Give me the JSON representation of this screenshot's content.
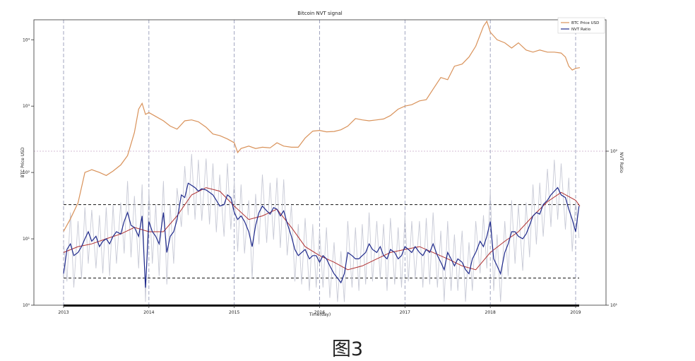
{
  "caption": "图3",
  "chart_data": {
    "type": "line",
    "title": "Bitcoin NVT signal",
    "xlabel": "Time(day)",
    "ylabel_left": "BTC Price USD",
    "ylabel_right": "NVT Ratio",
    "yscale_left": "log",
    "yscale_right": "log",
    "ylim_left": [
      1,
      20000
    ],
    "ylim_right": [
      10,
      100
    ],
    "x_ticks": [
      "2013",
      "2014",
      "2015",
      "2016",
      "2017",
      "2018",
      "2019"
    ],
    "y_ticks_left": [
      {
        "value": 1,
        "label": "10⁰"
      },
      {
        "value": 10,
        "label": "10¹"
      },
      {
        "value": 100,
        "label": "10²"
      },
      {
        "value": 1000,
        "label": "10³"
      },
      {
        "value": 10000,
        "label": "10⁴"
      }
    ],
    "y_ticks_right": [
      {
        "value": 10,
        "label": "10¹"
      },
      {
        "value": 100,
        "label": "10²"
      }
    ],
    "grid": "vertical dashed at years",
    "legend": {
      "position": "top-right",
      "entries": [
        "BTC Price USD",
        "NVT Ratio"
      ]
    },
    "colors": {
      "price": "#d9925a",
      "nvt": "#1f2a8c",
      "nvt_ma": "#b03030",
      "nvt_raw": "#c8cad6",
      "reference": "#111111",
      "grid": "#8a8fb0"
    },
    "reference_lines_nvt": [
      15,
      45
    ],
    "horizontal_guide_nvt": 100,
    "series": [
      {
        "name": "BTC Price USD",
        "axis": "left",
        "x": [
          2013.0,
          2013.08,
          2013.17,
          2013.25,
          2013.33,
          2013.42,
          2013.5,
          2013.58,
          2013.67,
          2013.75,
          2013.83,
          2013.88,
          2013.92,
          2013.96,
          2014.0,
          2014.08,
          2014.17,
          2014.25,
          2014.33,
          2014.42,
          2014.5,
          2014.58,
          2014.67,
          2014.75,
          2014.83,
          2014.92,
          2015.0,
          2015.04,
          2015.08,
          2015.17,
          2015.25,
          2015.33,
          2015.42,
          2015.5,
          2015.58,
          2015.67,
          2015.75,
          2015.83,
          2015.92,
          2016.0,
          2016.08,
          2016.17,
          2016.25,
          2016.33,
          2016.42,
          2016.5,
          2016.58,
          2016.67,
          2016.75,
          2016.83,
          2016.92,
          2017.0,
          2017.08,
          2017.17,
          2017.25,
          2017.33,
          2017.42,
          2017.5,
          2017.58,
          2017.67,
          2017.75,
          2017.83,
          2017.92,
          2017.96,
          2018.0,
          2018.08,
          2018.17,
          2018.25,
          2018.33,
          2018.42,
          2018.5,
          2018.58,
          2018.67,
          2018.75,
          2018.83,
          2018.88,
          2018.92,
          2018.96,
          2019.0,
          2019.05
        ],
        "values": [
          13,
          20,
          35,
          100,
          110,
          100,
          90,
          105,
          130,
          180,
          400,
          900,
          1100,
          750,
          800,
          700,
          600,
          500,
          450,
          600,
          620,
          580,
          480,
          380,
          360,
          320,
          280,
          200,
          230,
          250,
          230,
          240,
          235,
          280,
          250,
          240,
          240,
          330,
          420,
          430,
          410,
          415,
          440,
          500,
          650,
          620,
          600,
          620,
          640,
          720,
          900,
          1000,
          1050,
          1200,
          1250,
          1800,
          2700,
          2500,
          4000,
          4300,
          5500,
          8000,
          16000,
          19000,
          13000,
          10000,
          9000,
          7500,
          9000,
          7000,
          6500,
          7000,
          6500,
          6500,
          6300,
          5500,
          4000,
          3500,
          3700,
          3800
        ]
      },
      {
        "name": "NVT Ratio",
        "axis": "right",
        "x": [
          2013.0,
          2013.04,
          2013.08,
          2013.12,
          2013.17,
          2013.21,
          2013.25,
          2013.29,
          2013.33,
          2013.38,
          2013.42,
          2013.46,
          2013.5,
          2013.54,
          2013.58,
          2013.62,
          2013.67,
          2013.71,
          2013.75,
          2013.79,
          2013.83,
          2013.88,
          2013.92,
          2013.96,
          2014.0,
          2014.04,
          2014.08,
          2014.12,
          2014.17,
          2014.21,
          2014.25,
          2014.29,
          2014.33,
          2014.38,
          2014.42,
          2014.46,
          2014.5,
          2014.54,
          2014.58,
          2014.62,
          2014.67,
          2014.71,
          2014.75,
          2014.79,
          2014.83,
          2014.88,
          2014.92,
          2014.96,
          2015.0,
          2015.04,
          2015.08,
          2015.12,
          2015.17,
          2015.21,
          2015.25,
          2015.29,
          2015.33,
          2015.38,
          2015.42,
          2015.46,
          2015.5,
          2015.54,
          2015.58,
          2015.62,
          2015.67,
          2015.71,
          2015.75,
          2015.79,
          2015.83,
          2015.88,
          2015.92,
          2015.96,
          2016.0,
          2016.04,
          2016.08,
          2016.12,
          2016.17,
          2016.21,
          2016.25,
          2016.29,
          2016.33,
          2016.38,
          2016.42,
          2016.46,
          2016.5,
          2016.54,
          2016.58,
          2016.62,
          2016.67,
          2016.71,
          2016.75,
          2016.79,
          2016.83,
          2016.88,
          2016.92,
          2016.96,
          2017.0,
          2017.04,
          2017.08,
          2017.12,
          2017.17,
          2017.21,
          2017.25,
          2017.29,
          2017.33,
          2017.38,
          2017.42,
          2017.46,
          2017.5,
          2017.54,
          2017.58,
          2017.62,
          2017.67,
          2017.71,
          2017.75,
          2017.79,
          2017.83,
          2017.88,
          2017.92,
          2017.96,
          2018.0,
          2018.04,
          2018.08,
          2018.12,
          2018.17,
          2018.21,
          2018.25,
          2018.29,
          2018.33,
          2018.38,
          2018.42,
          2018.46,
          2018.5,
          2018.54,
          2018.58,
          2018.62,
          2018.67,
          2018.71,
          2018.75,
          2018.79,
          2018.83,
          2018.88,
          2018.92,
          2018.96,
          2019.0,
          2019.04
        ],
        "values": [
          16,
          23,
          25,
          21,
          22,
          24,
          27,
          30,
          26,
          28,
          24,
          26,
          27,
          25,
          28,
          30,
          29,
          35,
          40,
          33,
          32,
          28,
          38,
          13,
          35,
          30,
          28,
          25,
          40,
          22,
          28,
          30,
          36,
          52,
          50,
          62,
          60,
          58,
          55,
          57,
          56,
          54,
          52,
          48,
          44,
          45,
          52,
          50,
          40,
          36,
          38,
          35,
          30,
          24,
          33,
          40,
          44,
          41,
          39,
          43,
          42,
          38,
          41,
          34,
          28,
          23,
          21,
          22,
          23,
          20,
          21,
          21,
          19,
          21,
          20,
          18,
          16,
          15,
          14,
          16,
          22,
          21,
          20,
          20,
          21,
          22,
          25,
          23,
          22,
          24,
          21,
          20,
          23,
          22,
          20,
          21,
          24,
          23,
          22,
          24,
          22,
          21,
          23,
          22,
          25,
          21,
          19,
          17,
          22,
          20,
          18,
          20,
          19,
          17,
          16,
          20,
          22,
          26,
          24,
          28,
          35,
          20,
          18,
          16,
          22,
          25,
          30,
          30,
          28,
          27,
          29,
          33,
          38,
          40,
          39,
          45,
          48,
          52,
          55,
          58,
          52,
          50,
          42,
          36,
          30,
          44
        ]
      },
      {
        "name": "NVT moving average",
        "axis": "right",
        "x": [
          2013.0,
          2013.17,
          2013.33,
          2013.5,
          2013.67,
          2013.83,
          2014.0,
          2014.17,
          2014.33,
          2014.5,
          2014.67,
          2014.83,
          2015.0,
          2015.17,
          2015.33,
          2015.5,
          2015.67,
          2015.83,
          2016.0,
          2016.17,
          2016.33,
          2016.5,
          2016.67,
          2016.83,
          2017.0,
          2017.17,
          2017.33,
          2017.5,
          2017.67,
          2017.83,
          2018.0,
          2018.17,
          2018.33,
          2018.5,
          2018.67,
          2018.83,
          2019.0,
          2019.05
        ],
        "values": [
          22,
          24,
          25,
          27,
          29,
          32,
          30,
          30,
          38,
          52,
          58,
          55,
          44,
          36,
          38,
          42,
          32,
          24,
          21,
          19,
          17,
          18,
          20,
          22,
          23,
          24,
          22,
          20,
          18,
          17,
          22,
          26,
          30,
          38,
          47,
          54,
          48,
          44
        ]
      }
    ]
  }
}
